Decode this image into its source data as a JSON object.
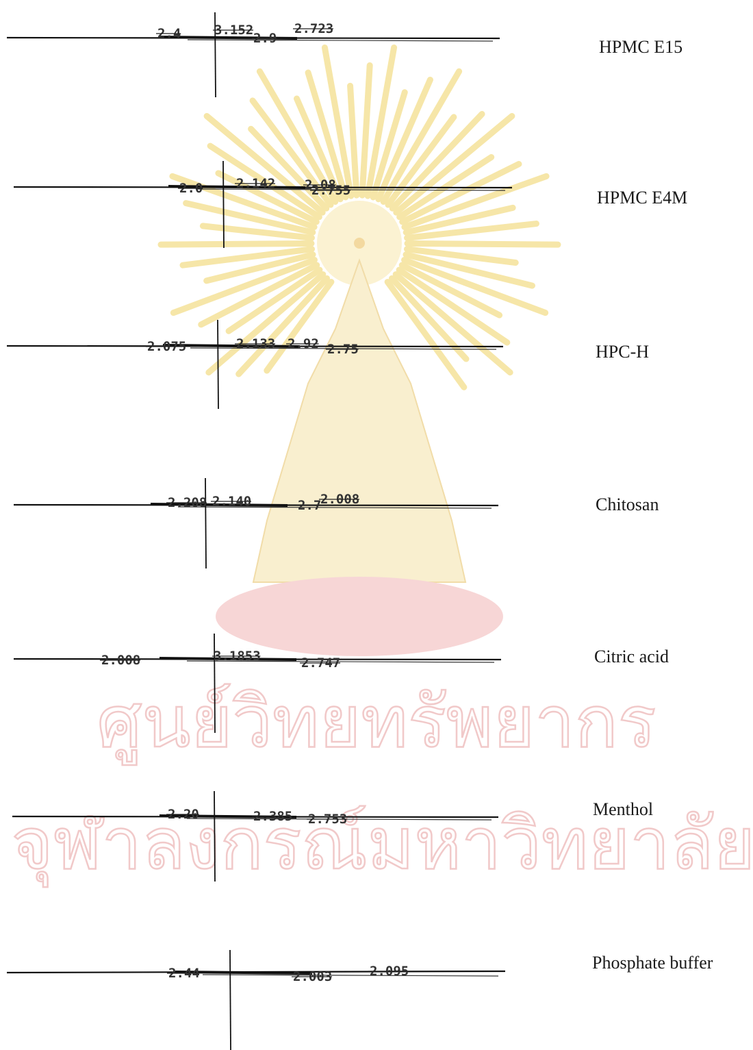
{
  "watermark": {
    "line1": "ศูนย์วิทยทรัพยากร",
    "line2": "จุฬาลงกรณ์มหาวิทยาลัย",
    "colors": {
      "outline": "#f1c9c9",
      "ray": "#f6e6a8",
      "base": "#f7d6d6"
    }
  },
  "chart_data": [
    {
      "type": "line",
      "name": "HPMC E15",
      "peaks": [
        {
          "label": "2.4"
        },
        {
          "label": "3.152"
        },
        {
          "label": "2.9"
        },
        {
          "label": "2.723"
        }
      ]
    },
    {
      "type": "line",
      "name": "HPMC E4M",
      "peaks": [
        {
          "label": "2.0"
        },
        {
          "label": "2.142"
        },
        {
          "label": "2.08"
        },
        {
          "label": "2.755"
        }
      ]
    },
    {
      "type": "line",
      "name": "HPC-H",
      "peaks": [
        {
          "label": "2.075"
        },
        {
          "label": "2.133"
        },
        {
          "label": "2.92"
        },
        {
          "label": "2.75"
        }
      ]
    },
    {
      "type": "line",
      "name": "Chitosan",
      "peaks": [
        {
          "label": "2.208"
        },
        {
          "label": "2.140"
        },
        {
          "label": "2.7"
        },
        {
          "label": "2.008"
        }
      ]
    },
    {
      "type": "line",
      "name": "Citric acid",
      "peaks": [
        {
          "label": "2.008"
        },
        {
          "label": "3.1853"
        },
        {
          "label": "2.747"
        }
      ]
    },
    {
      "type": "line",
      "name": "Menthol",
      "peaks": [
        {
          "label": "2.20"
        },
        {
          "label": "2.385"
        },
        {
          "label": "2.753"
        }
      ]
    },
    {
      "type": "line",
      "name": "Phosphate buffer",
      "peaks": [
        {
          "label": "2.44"
        },
        {
          "label": "2.003"
        },
        {
          "label": "2.095"
        }
      ]
    }
  ]
}
